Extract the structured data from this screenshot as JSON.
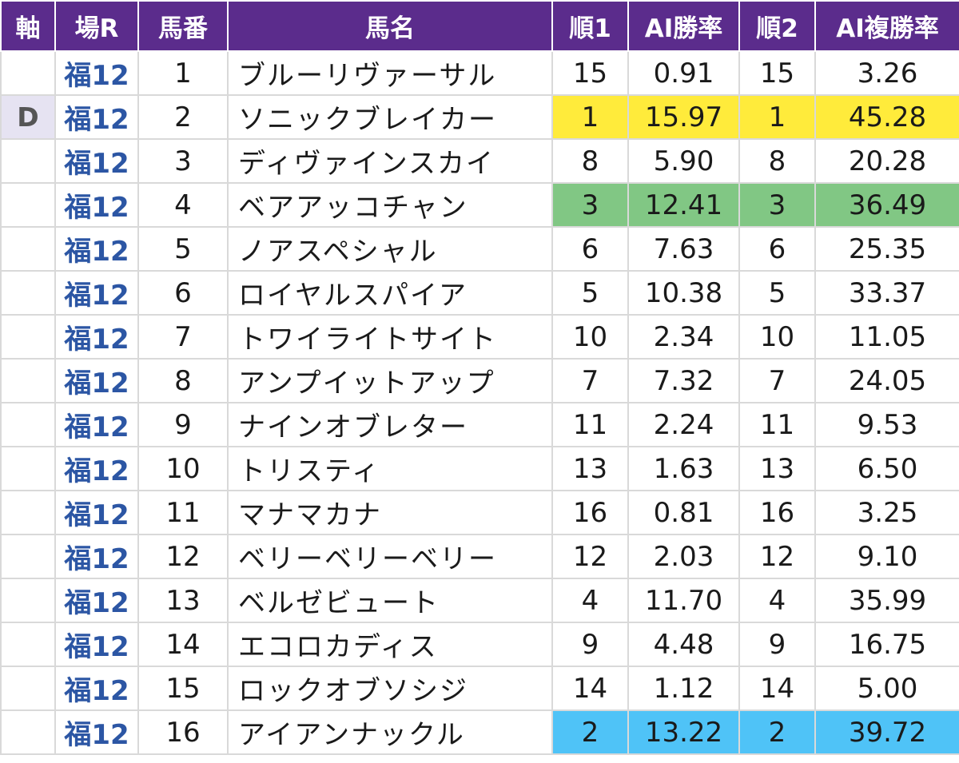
{
  "headers": [
    "軸",
    "場R",
    "馬番",
    "馬名",
    "順1",
    "AI勝率",
    "順2",
    "AI複勝率"
  ],
  "highlight_colors": {
    "rank1": "#ffeb3b",
    "rank2": "#4fc3f7",
    "rank3": "#81c784"
  },
  "rows": [
    {
      "axis": "",
      "venue": "福12",
      "num": "1",
      "name": "ブルーリヴァーサル",
      "rank1": "15",
      "win": "0.91",
      "rank2": "15",
      "place": "3.26"
    },
    {
      "axis": "D",
      "venue": "福12",
      "num": "2",
      "name": "ソニックブレイカー",
      "rank1": "1",
      "win": "15.97",
      "rank2": "1",
      "place": "45.28"
    },
    {
      "axis": "",
      "venue": "福12",
      "num": "3",
      "name": "ディヴァインスカイ",
      "rank1": "8",
      "win": "5.90",
      "rank2": "8",
      "place": "20.28"
    },
    {
      "axis": "",
      "venue": "福12",
      "num": "4",
      "name": "ベアアッコチャン",
      "rank1": "3",
      "win": "12.41",
      "rank2": "3",
      "place": "36.49"
    },
    {
      "axis": "",
      "venue": "福12",
      "num": "5",
      "name": "ノアスペシャル",
      "rank1": "6",
      "win": "7.63",
      "rank2": "6",
      "place": "25.35"
    },
    {
      "axis": "",
      "venue": "福12",
      "num": "6",
      "name": "ロイヤルスパイア",
      "rank1": "5",
      "win": "10.38",
      "rank2": "5",
      "place": "33.37"
    },
    {
      "axis": "",
      "venue": "福12",
      "num": "7",
      "name": "トワイライトサイト",
      "rank1": "10",
      "win": "2.34",
      "rank2": "10",
      "place": "11.05"
    },
    {
      "axis": "",
      "venue": "福12",
      "num": "8",
      "name": "アンプイットアップ",
      "rank1": "7",
      "win": "7.32",
      "rank2": "7",
      "place": "24.05"
    },
    {
      "axis": "",
      "venue": "福12",
      "num": "9",
      "name": "ナインオブレター",
      "rank1": "11",
      "win": "2.24",
      "rank2": "11",
      "place": "9.53"
    },
    {
      "axis": "",
      "venue": "福12",
      "num": "10",
      "name": "トリスティ",
      "rank1": "13",
      "win": "1.63",
      "rank2": "13",
      "place": "6.50"
    },
    {
      "axis": "",
      "venue": "福12",
      "num": "11",
      "name": "マナマカナ",
      "rank1": "16",
      "win": "0.81",
      "rank2": "16",
      "place": "3.25"
    },
    {
      "axis": "",
      "venue": "福12",
      "num": "12",
      "name": "ベリーベリーベリー",
      "rank1": "12",
      "win": "2.03",
      "rank2": "12",
      "place": "9.10"
    },
    {
      "axis": "",
      "venue": "福12",
      "num": "13",
      "name": "ベルゼビュート",
      "rank1": "4",
      "win": "11.70",
      "rank2": "4",
      "place": "35.99"
    },
    {
      "axis": "",
      "venue": "福12",
      "num": "14",
      "name": "エコロカディス",
      "rank1": "9",
      "win": "4.48",
      "rank2": "9",
      "place": "16.75"
    },
    {
      "axis": "",
      "venue": "福12",
      "num": "15",
      "name": "ロックオブソシジ",
      "rank1": "14",
      "win": "1.12",
      "rank2": "14",
      "place": "5.00"
    },
    {
      "axis": "",
      "venue": "福12",
      "num": "16",
      "name": "アイアンナックル",
      "rank1": "2",
      "win": "13.22",
      "rank2": "2",
      "place": "39.72"
    }
  ]
}
